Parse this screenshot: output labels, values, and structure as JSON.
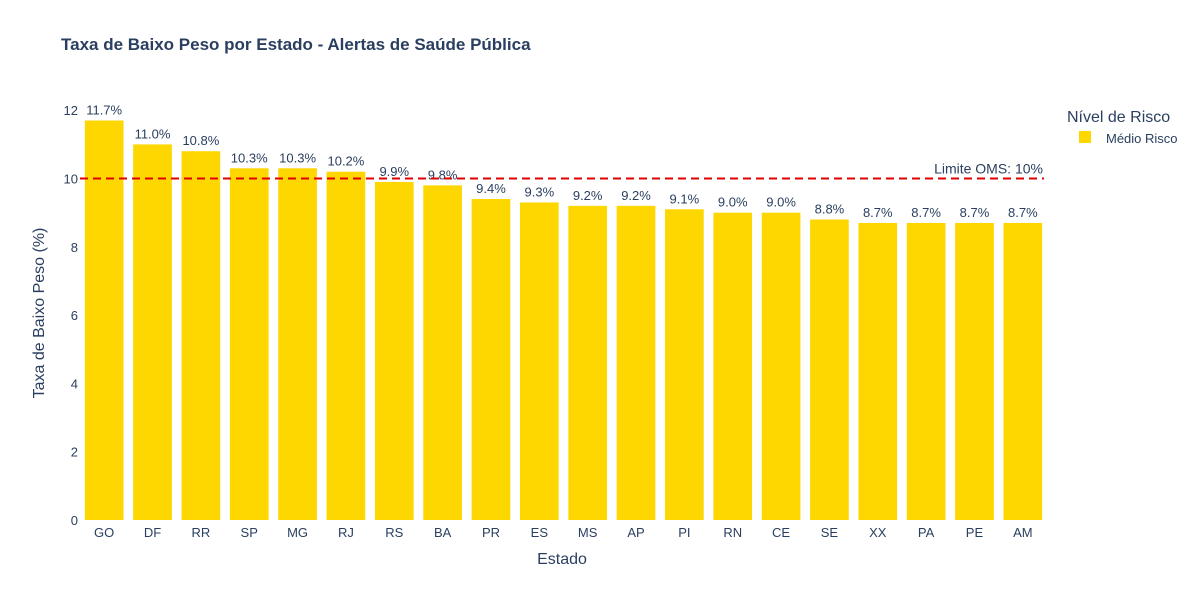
{
  "chart_data": {
    "type": "bar",
    "title": "Taxa de Baixo Peso por Estado - Alertas de Saúde Pública",
    "xlabel": "Estado",
    "ylabel": "Taxa de Baixo Peso (%)",
    "ylim": [
      0,
      12.3
    ],
    "yticks": [
      0,
      2,
      4,
      6,
      8,
      10,
      12
    ],
    "grid": false,
    "legend_position": "top-right",
    "legend_title": "Nível de Risco",
    "categories": [
      "GO",
      "DF",
      "RR",
      "SP",
      "MG",
      "RJ",
      "RS",
      "BA",
      "PR",
      "ES",
      "MS",
      "AP",
      "PI",
      "RN",
      "CE",
      "SE",
      "XX",
      "PA",
      "PE",
      "AM"
    ],
    "series": [
      {
        "name": "Médio Risco",
        "color": "#FFD700",
        "values": [
          11.7,
          11.0,
          10.8,
          10.3,
          10.3,
          10.2,
          9.9,
          9.8,
          9.4,
          9.3,
          9.2,
          9.2,
          9.1,
          9.0,
          9.0,
          8.8,
          8.7,
          8.7,
          8.7,
          8.7
        ],
        "data_labels": [
          "11.7%",
          "11.0%",
          "10.8%",
          "10.3%",
          "10.3%",
          "10.2%",
          "9.9%",
          "9.8%",
          "9.4%",
          "9.3%",
          "9.2%",
          "9.2%",
          "9.1%",
          "9.0%",
          "9.0%",
          "8.8%",
          "8.7%",
          "8.7%",
          "8.7%",
          "8.7%"
        ]
      }
    ],
    "reference_line": {
      "value": 10,
      "label": "Limite OMS: 10%",
      "color": "#E00000",
      "style": "dashed"
    }
  },
  "colors": {
    "text": "#2a3f5f",
    "title": "#2a3f5f"
  }
}
